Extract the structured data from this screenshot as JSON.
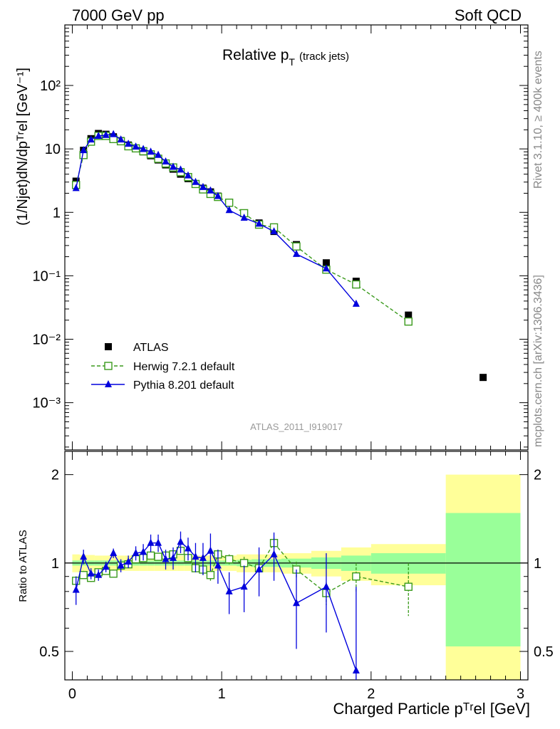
{
  "header": {
    "left": "7000 GeV pp",
    "right": "Soft QCD"
  },
  "side": {
    "rivet": "Rivet 3.1.10, ≥ 400k events",
    "mcplots": "mcplots.cern.ch [arXiv:1306.3436]"
  },
  "chart_data": [
    {
      "type": "scatter",
      "panel": "main",
      "title_main": "Relative p",
      "title_sub": "T",
      "title_note": "(track jets)",
      "ylabel": "(1/Njet)dN/dpᵀʳel [GeV⁻¹]",
      "analysis_id": "ATLAS_2011_I919017",
      "yscale": "log",
      "xlim": [
        -0.05,
        3.05
      ],
      "ylim": [
        0.00018,
        900
      ],
      "y_tick_labels": [
        "10⁻³",
        "10⁻²",
        "10⁻¹",
        "1",
        "10",
        "10²"
      ],
      "legend_position": "bottom-left",
      "series": [
        {
          "name": "ATLAS",
          "color": "#000000",
          "marker": "filled-square",
          "x": [
            0.025,
            0.075,
            0.125,
            0.175,
            0.225,
            0.275,
            0.325,
            0.375,
            0.425,
            0.475,
            0.525,
            0.575,
            0.625,
            0.675,
            0.725,
            0.775,
            0.825,
            0.875,
            0.925,
            0.975,
            1.05,
            1.15,
            1.25,
            1.35,
            1.5,
            1.7,
            1.9,
            2.25,
            2.75
          ],
          "y": [
            3.1,
            9.5,
            14.5,
            17.5,
            17.0,
            15.5,
            13.5,
            11.5,
            10.2,
            9.0,
            7.8,
            6.7,
            5.6,
            4.8,
            4.0,
            3.4,
            2.8,
            2.4,
            2.1,
            1.8,
            1.4,
            0.98,
            0.68,
            0.5,
            0.31,
            0.16,
            0.082,
            0.024,
            0.0025
          ]
        },
        {
          "name": "Herwig 7.2.1 default",
          "color": "#3a9a1c",
          "marker": "open-square",
          "line": "dashed",
          "x": [
            0.025,
            0.075,
            0.125,
            0.175,
            0.225,
            0.275,
            0.325,
            0.375,
            0.425,
            0.475,
            0.525,
            0.575,
            0.625,
            0.675,
            0.725,
            0.775,
            0.825,
            0.875,
            0.925,
            0.975,
            1.05,
            1.15,
            1.25,
            1.35,
            1.5,
            1.7,
            1.9,
            2.25
          ],
          "y": [
            2.7,
            8.0,
            13.0,
            16.0,
            16.0,
            14.3,
            13.2,
            11.0,
            10.2,
            9.2,
            8.2,
            7.0,
            5.9,
            5.1,
            4.3,
            3.6,
            2.8,
            2.3,
            1.95,
            1.75,
            1.42,
            0.97,
            0.64,
            0.58,
            0.29,
            0.125,
            0.073,
            0.019
          ]
        },
        {
          "name": "Pythia 8.201 default",
          "color": "#0000dd",
          "marker": "filled-triangle",
          "line": "solid",
          "x": [
            0.025,
            0.075,
            0.125,
            0.175,
            0.225,
            0.275,
            0.325,
            0.375,
            0.425,
            0.475,
            0.525,
            0.575,
            0.625,
            0.675,
            0.725,
            0.775,
            0.825,
            0.875,
            0.925,
            0.975,
            1.05,
            1.15,
            1.25,
            1.35,
            1.5,
            1.7,
            1.9
          ],
          "y": [
            2.4,
            9.5,
            14.0,
            16.0,
            16.5,
            17.0,
            14.0,
            12.0,
            10.8,
            9.9,
            9.0,
            8.0,
            6.3,
            5.2,
            4.7,
            3.8,
            3.0,
            2.5,
            2.2,
            1.8,
            1.08,
            0.82,
            0.66,
            0.5,
            0.22,
            0.13,
            0.036
          ]
        }
      ]
    },
    {
      "type": "scatter",
      "panel": "ratio",
      "ylabel": "Ratio to ATLAS",
      "xlabel": "Charged Particle pᵀʳel [GeV]",
      "yscale": "log",
      "xlim": [
        -0.05,
        3.05
      ],
      "ylim": [
        0.4,
        2.4
      ],
      "x_tick_labels": [
        "0",
        "1",
        "2",
        "3"
      ],
      "y_tick_labels": [
        "0.5",
        "1",
        "2"
      ],
      "bands": {
        "edges": [
          0.0,
          0.05,
          0.1,
          0.15,
          0.2,
          0.25,
          0.3,
          0.35,
          0.4,
          0.45,
          0.5,
          0.55,
          0.6,
          0.65,
          0.7,
          0.75,
          0.8,
          0.85,
          0.9,
          0.95,
          1.0,
          1.1,
          1.2,
          1.3,
          1.4,
          1.6,
          1.8,
          2.0,
          2.5,
          3.0
        ],
        "stat_half_width": [
          0.02,
          0.02,
          0.02,
          0.02,
          0.02,
          0.02,
          0.02,
          0.02,
          0.02,
          0.02,
          0.02,
          0.02,
          0.02,
          0.02,
          0.02,
          0.02,
          0.02,
          0.02,
          0.02,
          0.02,
          0.02,
          0.025,
          0.03,
          0.03,
          0.035,
          0.045,
          0.06,
          0.08,
          0.48
        ],
        "total_half_width": [
          0.07,
          0.065,
          0.065,
          0.06,
          0.06,
          0.06,
          0.06,
          0.06,
          0.06,
          0.06,
          0.06,
          0.06,
          0.06,
          0.06,
          0.06,
          0.06,
          0.06,
          0.06,
          0.06,
          0.06,
          0.06,
          0.07,
          0.07,
          0.07,
          0.08,
          0.1,
          0.13,
          0.16,
          1.0
        ],
        "colors": {
          "stat": "#99ff99",
          "total": "#ffff99"
        }
      },
      "series": [
        {
          "name": "Herwig 7.2.1 default",
          "color": "#3a9a1c",
          "marker": "open-square",
          "line": "dashed",
          "x": [
            0.025,
            0.075,
            0.125,
            0.175,
            0.225,
            0.275,
            0.325,
            0.375,
            0.425,
            0.475,
            0.525,
            0.575,
            0.625,
            0.675,
            0.725,
            0.775,
            0.825,
            0.875,
            0.925,
            0.975,
            1.05,
            1.15,
            1.25,
            1.35,
            1.5,
            1.7,
            1.9,
            2.25
          ],
          "y": [
            0.87,
            0.91,
            0.89,
            0.93,
            0.94,
            0.92,
            0.98,
            0.99,
            1.03,
            1.04,
            1.06,
            1.05,
            1.06,
            1.07,
            1.1,
            1.04,
            0.96,
            0.95,
            0.91,
            1.07,
            1.03,
            1.0,
            0.96,
            1.17,
            0.95,
            0.79,
            0.9,
            0.83
          ],
          "err": [
            0.03,
            0.03,
            0.03,
            0.03,
            0.03,
            0.03,
            0.03,
            0.03,
            0.03,
            0.03,
            0.03,
            0.03,
            0.03,
            0.03,
            0.03,
            0.03,
            0.03,
            0.04,
            0.04,
            0.04,
            0.04,
            0.05,
            0.05,
            0.05,
            0.06,
            0.07,
            0.1,
            0.17
          ]
        },
        {
          "name": "Pythia 8.201 default",
          "color": "#0000dd",
          "marker": "filled-triangle",
          "line": "solid",
          "x": [
            0.025,
            0.075,
            0.125,
            0.175,
            0.225,
            0.275,
            0.325,
            0.375,
            0.425,
            0.475,
            0.525,
            0.575,
            0.625,
            0.675,
            0.725,
            0.775,
            0.825,
            0.875,
            0.925,
            0.975,
            1.05,
            1.15,
            1.25,
            1.35,
            1.5,
            1.7,
            1.9
          ],
          "y": [
            0.81,
            1.05,
            0.92,
            0.91,
            0.97,
            1.08,
            0.98,
            1.01,
            1.08,
            1.09,
            1.17,
            1.17,
            1.03,
            1.04,
            1.18,
            1.12,
            1.05,
            1.04,
            1.1,
            0.98,
            0.8,
            0.83,
            0.95,
            1.07,
            0.73,
            0.83,
            0.43
          ],
          "err": [
            0.09,
            0.06,
            0.04,
            0.04,
            0.04,
            0.04,
            0.05,
            0.05,
            0.06,
            0.07,
            0.08,
            0.08,
            0.08,
            0.09,
            0.1,
            0.1,
            0.12,
            0.13,
            0.16,
            0.13,
            0.13,
            0.15,
            0.18,
            0.2,
            0.22,
            0.25,
            0.4
          ]
        }
      ]
    }
  ]
}
